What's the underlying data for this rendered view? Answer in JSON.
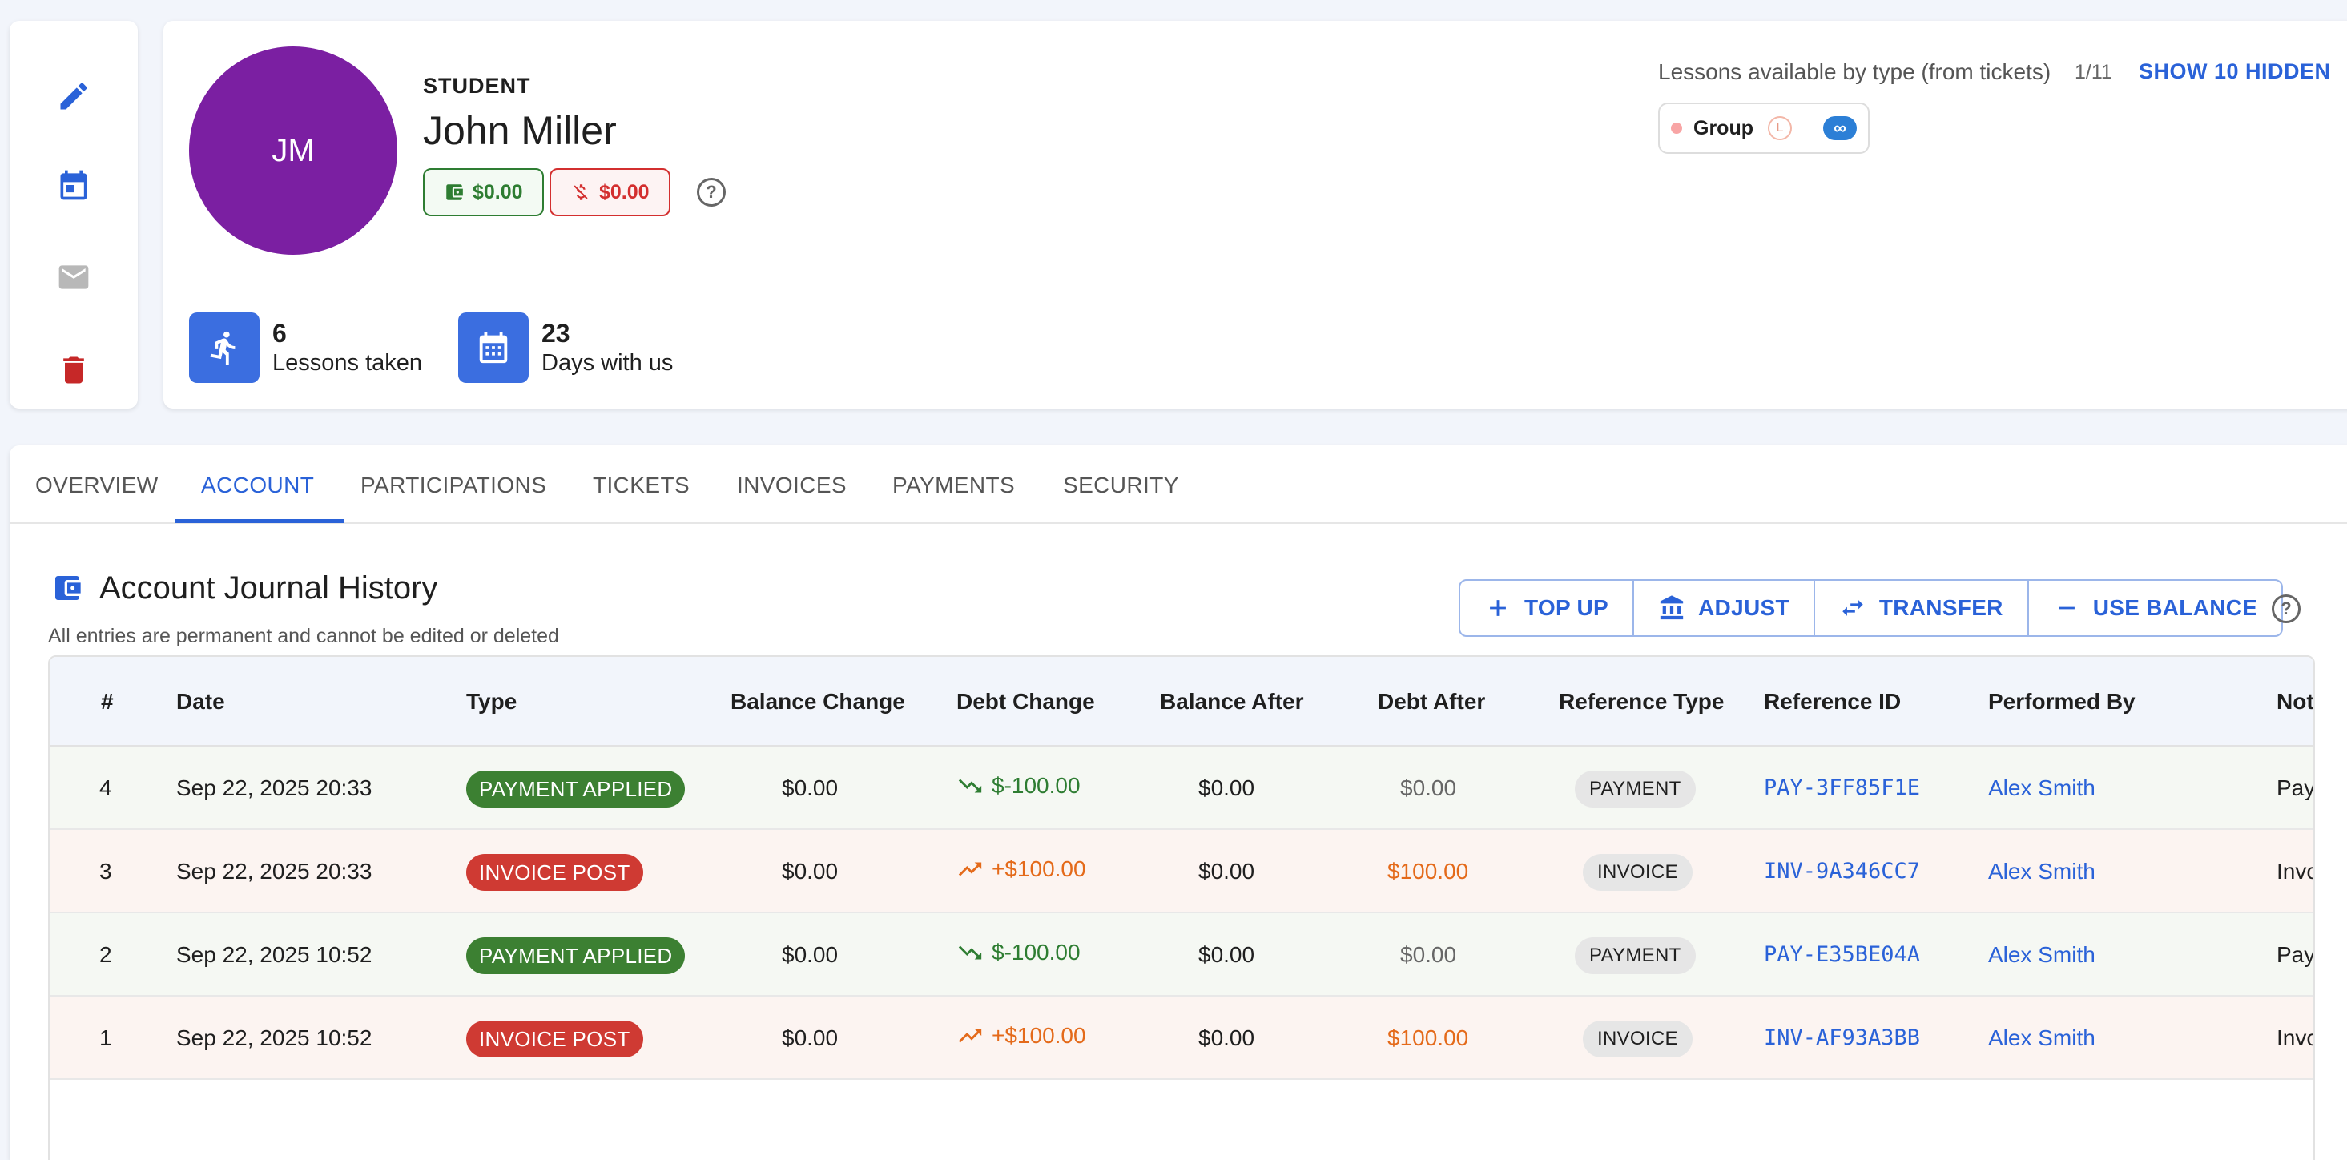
{
  "profile": {
    "initials": "JM",
    "role": "STUDENT",
    "name": "John Miller",
    "balance": "$0.00",
    "debt": "$0.00",
    "stats": [
      {
        "value": "6",
        "label": "Lessons taken"
      },
      {
        "value": "23",
        "label": "Days with us"
      }
    ]
  },
  "lessons": {
    "title": "Lessons available by type (from tickets)",
    "count": "1/11",
    "show_hidden": "SHOW 10 HIDDEN",
    "chip": {
      "name": "Group",
      "level": "L",
      "quantity": "∞"
    }
  },
  "tabs": [
    "OVERVIEW",
    "ACCOUNT",
    "PARTICIPATIONS",
    "TICKETS",
    "INVOICES",
    "PAYMENTS",
    "SECURITY"
  ],
  "active_tab": "ACCOUNT",
  "journal": {
    "title": "Account Journal History",
    "subtitle": "All entries are permanent and cannot be edited or deleted",
    "buttons": {
      "top_up": "TOP UP",
      "adjust": "ADJUST",
      "transfer": "TRANSFER",
      "use_balance": "USE BALANCE"
    },
    "columns": [
      "#",
      "Date",
      "Type",
      "Balance Change",
      "Debt Change",
      "Balance After",
      "Debt After",
      "Reference Type",
      "Reference ID",
      "Performed By",
      "Not"
    ],
    "rows": [
      {
        "num": "4",
        "date": "Sep 22, 2025 20:33",
        "type": "PAYMENT APPLIED",
        "balance_change": "$0.00",
        "debt_change": "$-100.00",
        "balance_after": "$0.00",
        "debt_after": "$0.00",
        "ref_type": "PAYMENT",
        "ref_id": "PAY-3FF85F1E",
        "performed_by": "Alex Smith",
        "notes": "Pay"
      },
      {
        "num": "3",
        "date": "Sep 22, 2025 20:33",
        "type": "INVOICE POST",
        "balance_change": "$0.00",
        "debt_change": "+$100.00",
        "balance_after": "$0.00",
        "debt_after": "$100.00",
        "ref_type": "INVOICE",
        "ref_id": "INV-9A346CC7",
        "performed_by": "Alex Smith",
        "notes": "Invo"
      },
      {
        "num": "2",
        "date": "Sep 22, 2025 10:52",
        "type": "PAYMENT APPLIED",
        "balance_change": "$0.00",
        "debt_change": "$-100.00",
        "balance_after": "$0.00",
        "debt_after": "$0.00",
        "ref_type": "PAYMENT",
        "ref_id": "PAY-E35BE04A",
        "performed_by": "Alex Smith",
        "notes": "Pay"
      },
      {
        "num": "1",
        "date": "Sep 22, 2025 10:52",
        "type": "INVOICE POST",
        "balance_change": "$0.00",
        "debt_change": "+$100.00",
        "balance_after": "$0.00",
        "debt_after": "$100.00",
        "ref_type": "INVOICE",
        "ref_id": "INV-AF93A3BB",
        "performed_by": "Alex Smith",
        "notes": "Invo"
      }
    ]
  },
  "colors": {
    "accent": "#2a62d8",
    "avatar": "#7b1fa2",
    "positive": "#2e7d32",
    "negative": "#cf3a33",
    "warning": "#e46a1a"
  },
  "icons": [
    "edit-icon",
    "calendar-icon",
    "mail-icon",
    "trash-icon",
    "wallet-icon",
    "money-off-icon",
    "help-icon",
    "runner-icon",
    "calendar-icon",
    "plus-icon",
    "bank-icon",
    "swap-icon",
    "minus-icon",
    "trending-down-icon",
    "trending-up-icon"
  ]
}
